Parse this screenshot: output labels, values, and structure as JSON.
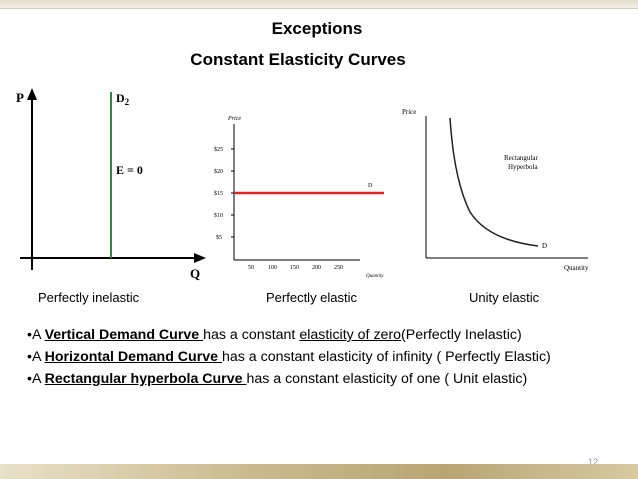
{
  "slide": {
    "title_line1": "Exceptions",
    "title_line2": "Constant Elasticity Curves",
    "page_number": "12"
  },
  "figures": {
    "inelastic": {
      "y_axis": "P",
      "x_axis": "Q",
      "curve_label": "D",
      "curve_subscript": "2",
      "annotation": "E = 0",
      "line_color": "#2e8b3e"
    },
    "elastic": {
      "y_axis": "Price",
      "x_axis": "Quantity",
      "curve_label": "D",
      "y_ticks": [
        "$25",
        "$20",
        "$15",
        "$10",
        "$5"
      ],
      "x_ticks": [
        "50",
        "100",
        "150",
        "200",
        "250"
      ],
      "line_color": "#e02424"
    },
    "unity": {
      "y_axis": "Price",
      "x_axis": "Quantity",
      "curve_label": "D",
      "annotation_line1": "Rectangular",
      "annotation_line2": "Hyperbola"
    }
  },
  "captions": {
    "inelastic": "Perfectly inelastic",
    "elastic": "Perfectly elastic",
    "unity": "Unity elastic"
  },
  "bullets": {
    "b1_prefix": "•A ",
    "b1_link": "Vertical Demand Curve ",
    "b1_mid": "has a constant ",
    "b1_link2": "elasticity of zero",
    "b1_suffix": "(Perfectly Inelastic)",
    "b2_prefix": "•A ",
    "b2_link": "Horizontal Demand Curve ",
    "b2_suffix": "has a constant elasticity of infinity ( Perfectly Elastic)",
    "b3_prefix": "•A ",
    "b3_link": "Rectangular hyperbola Curve ",
    "b3_suffix": "has a constant elasticity of one ( Unit elastic)"
  }
}
